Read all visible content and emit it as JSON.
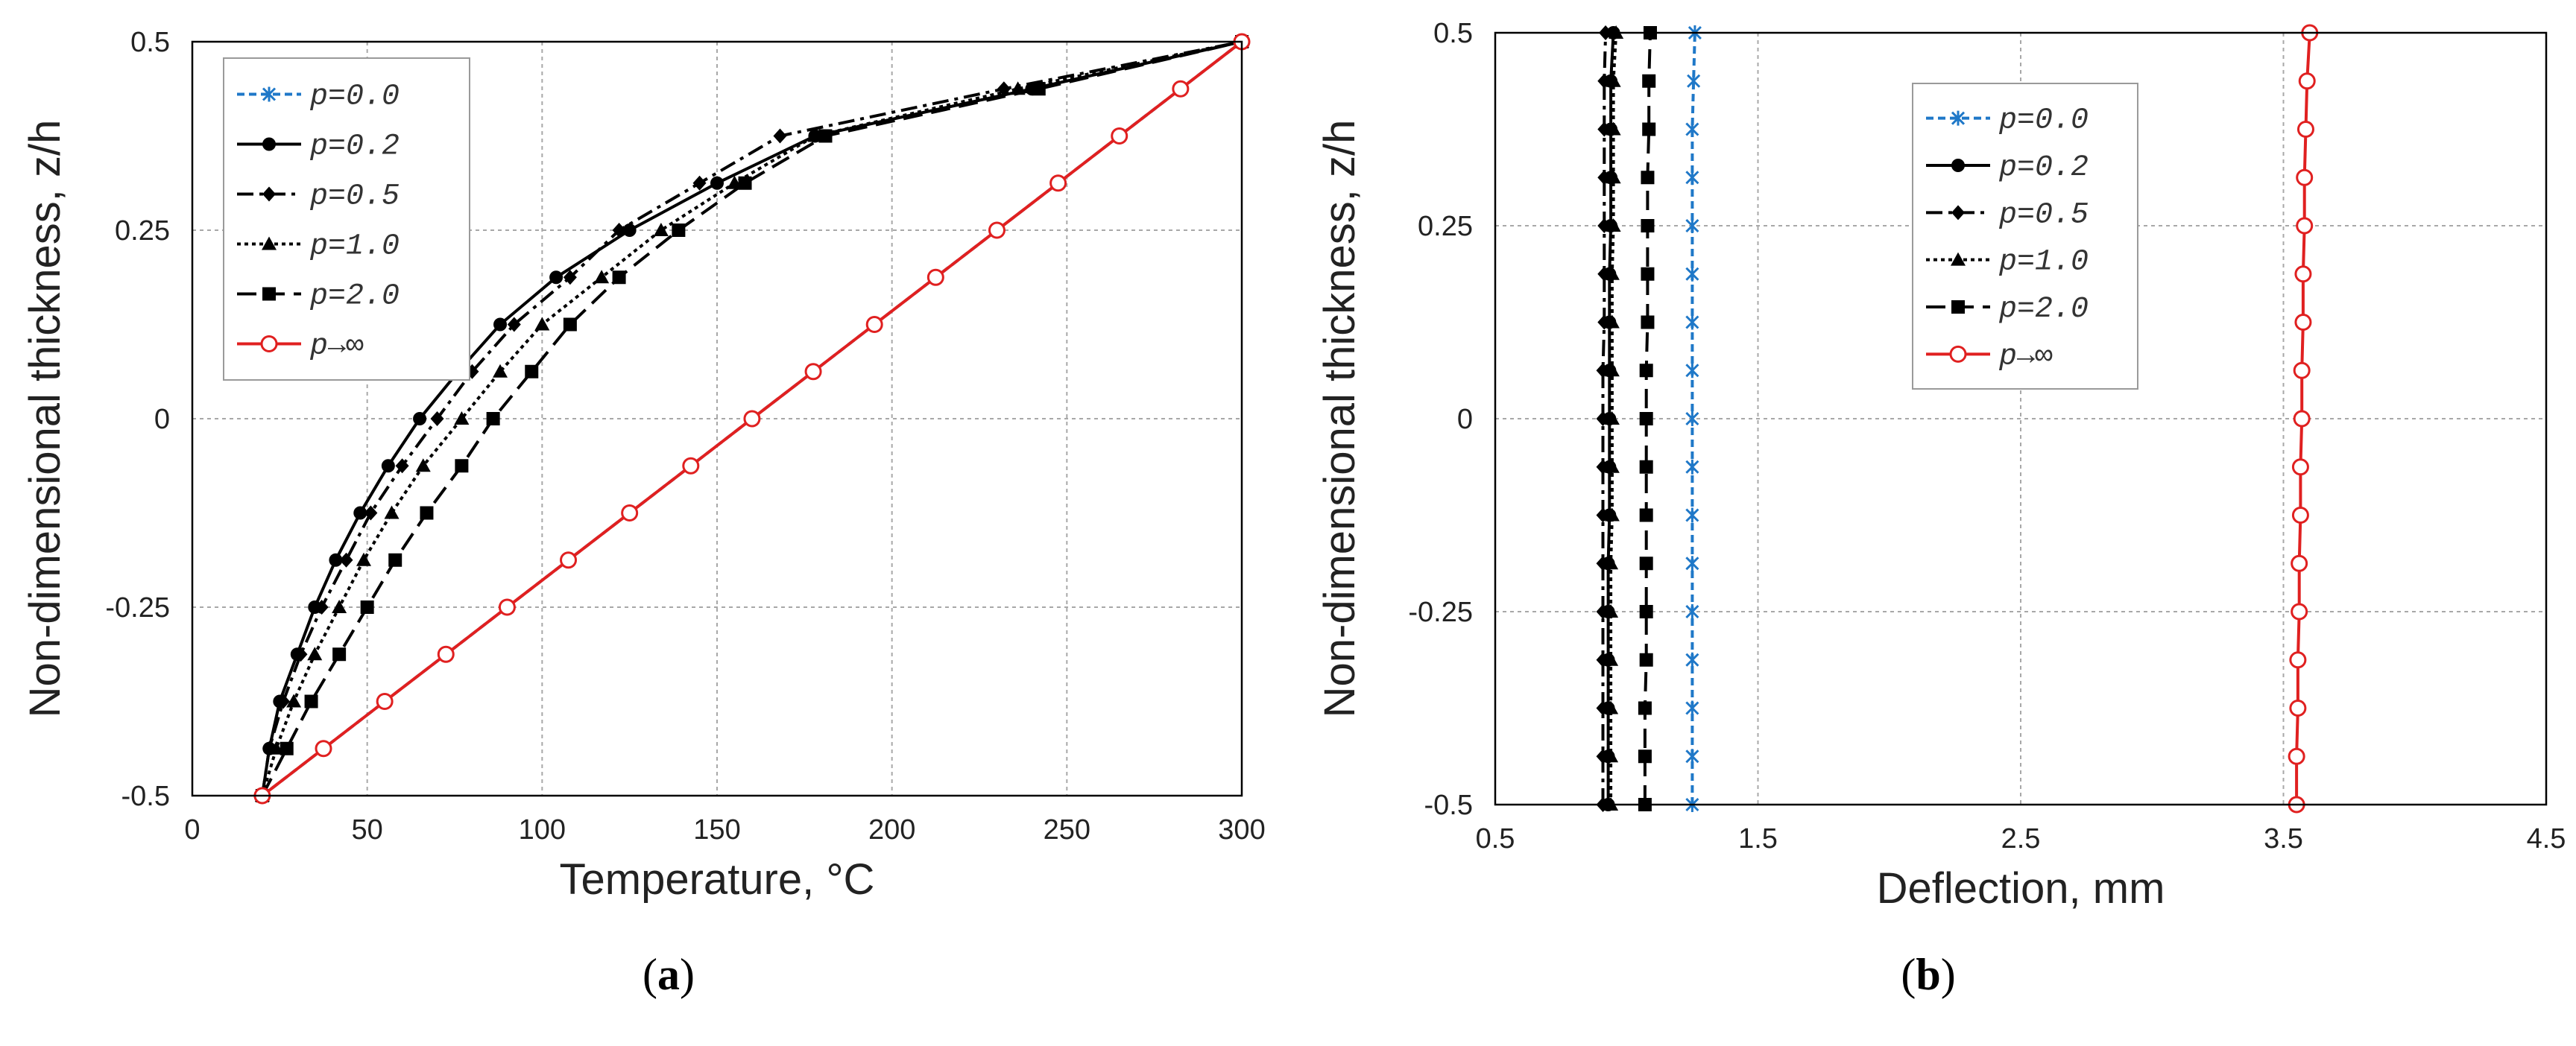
{
  "panel_labels": [
    "(a)",
    "(b)"
  ],
  "panel_label_parts": [
    {
      "open": "(",
      "letter": "a",
      "close": ")"
    },
    {
      "open": "(",
      "letter": "b",
      "close": ")"
    }
  ],
  "chart_data": [
    {
      "type": "line",
      "panel": "(a)",
      "xlabel": "Temperature, °C",
      "ylabel": "Non-dimensional thickness, z/h",
      "xlim": [
        0,
        300
      ],
      "ylim": [
        -0.5,
        0.5
      ],
      "xticks": [
        "0",
        "50",
        "100",
        "150",
        "200",
        "250",
        "300"
      ],
      "yticks": [
        "-0.5",
        "-0.25",
        "0",
        "0.25",
        "0.5"
      ],
      "grid": true,
      "legend_position": "top-left",
      "y": [
        -0.5,
        -0.4375,
        -0.375,
        -0.3125,
        -0.25,
        -0.1875,
        -0.125,
        -0.0625,
        0,
        0.0625,
        0.125,
        0.1875,
        0.25,
        0.3125,
        0.375,
        0.4375,
        0.5
      ],
      "series": [
        {
          "name": "p=0.0",
          "color": "#1f78c8",
          "dash": "short",
          "marker": "asterisk",
          "x": [
            20,
            37.5,
            55,
            72.5,
            90,
            107.5,
            125,
            142.5,
            160,
            177.5,
            195,
            212.5,
            230,
            247.5,
            265,
            282.5,
            300
          ]
        },
        {
          "name": "p=0.2",
          "color": "#000000",
          "dash": "solid",
          "marker": "circle",
          "x": [
            20,
            22,
            25,
            30,
            35,
            41,
            48,
            56,
            65,
            76,
            88,
            104,
            125,
            150,
            178,
            240,
            300
          ]
        },
        {
          "name": "p=0.5",
          "color": "#000000",
          "dash": "dashdot",
          "marker": "diamond",
          "x": [
            20,
            22,
            26,
            31,
            37,
            44,
            51,
            60,
            70,
            80,
            92,
            108,
            122,
            145,
            168,
            232,
            300
          ]
        },
        {
          "name": "p=1.0",
          "color": "#000000",
          "dash": "dotted",
          "marker": "triangle",
          "x": [
            20,
            24,
            29,
            35,
            42,
            49,
            57,
            66,
            77,
            88,
            100,
            117,
            134,
            155,
            178,
            236,
            300
          ]
        },
        {
          "name": "p=2.0",
          "color": "#000000",
          "dash": "longdash",
          "marker": "square",
          "x": [
            20,
            27,
            34,
            42,
            50,
            58,
            67,
            77,
            86,
            97,
            108,
            122,
            139,
            158,
            181,
            242,
            300
          ]
        },
        {
          "name": "p→∞",
          "color": "#e02020",
          "dash": "solid",
          "marker": "open-circle",
          "x": [
            20,
            37.5,
            55,
            72.5,
            90,
            107.5,
            125,
            142.5,
            160,
            177.5,
            195,
            212.5,
            230,
            247.5,
            265,
            282.5,
            300
          ]
        }
      ]
    },
    {
      "type": "line",
      "panel": "(b)",
      "xlabel": "Deflection, mm",
      "ylabel": "Non-dimensional thickness, z/h",
      "xlim": [
        0.5,
        4.5
      ],
      "ylim": [
        -0.5,
        0.5
      ],
      "xticks": [
        "0.5",
        "1.5",
        "2.5",
        "3.5",
        "4.5"
      ],
      "yticks": [
        "-0.5",
        "-0.25",
        "0",
        "0.25",
        "0.5"
      ],
      "grid": true,
      "legend_position": "top-center",
      "y": [
        -0.5,
        -0.4375,
        -0.375,
        -0.3125,
        -0.25,
        -0.1875,
        -0.125,
        -0.0625,
        0,
        0.0625,
        0.125,
        0.1875,
        0.25,
        0.3125,
        0.375,
        0.4375,
        0.5
      ],
      "series": [
        {
          "name": "p=0.0",
          "color": "#1f78c8",
          "dash": "short",
          "marker": "asterisk",
          "x": [
            1.25,
            1.25,
            1.25,
            1.25,
            1.25,
            1.25,
            1.25,
            1.25,
            1.25,
            1.25,
            1.25,
            1.25,
            1.25,
            1.25,
            1.25,
            1.255,
            1.26
          ]
        },
        {
          "name": "p=0.2",
          "color": "#000000",
          "dash": "solid",
          "marker": "circle",
          "x": [
            0.93,
            0.93,
            0.93,
            0.93,
            0.93,
            0.93,
            0.935,
            0.935,
            0.935,
            0.935,
            0.935,
            0.935,
            0.94,
            0.94,
            0.94,
            0.94,
            0.95
          ]
        },
        {
          "name": "p=0.5",
          "color": "#000000",
          "dash": "dashdot",
          "marker": "diamond",
          "x": [
            0.91,
            0.91,
            0.91,
            0.91,
            0.91,
            0.91,
            0.91,
            0.91,
            0.91,
            0.91,
            0.915,
            0.915,
            0.915,
            0.915,
            0.915,
            0.915,
            0.92
          ]
        },
        {
          "name": "p=1.0",
          "color": "#000000",
          "dash": "dotted",
          "marker": "triangle",
          "x": [
            0.94,
            0.94,
            0.94,
            0.94,
            0.94,
            0.94,
            0.945,
            0.945,
            0.945,
            0.945,
            0.945,
            0.945,
            0.95,
            0.95,
            0.95,
            0.95,
            0.96
          ]
        },
        {
          "name": "p=2.0",
          "color": "#000000",
          "dash": "longdash",
          "marker": "square",
          "x": [
            1.07,
            1.07,
            1.07,
            1.075,
            1.075,
            1.075,
            1.075,
            1.075,
            1.075,
            1.075,
            1.08,
            1.08,
            1.08,
            1.08,
            1.085,
            1.085,
            1.09
          ]
        },
        {
          "name": "p→∞",
          "color": "#e02020",
          "dash": "solid",
          "marker": "open-circle",
          "x": [
            3.55,
            3.55,
            3.555,
            3.555,
            3.56,
            3.56,
            3.565,
            3.565,
            3.57,
            3.57,
            3.575,
            3.575,
            3.58,
            3.58,
            3.585,
            3.59,
            3.6
          ]
        }
      ]
    }
  ]
}
